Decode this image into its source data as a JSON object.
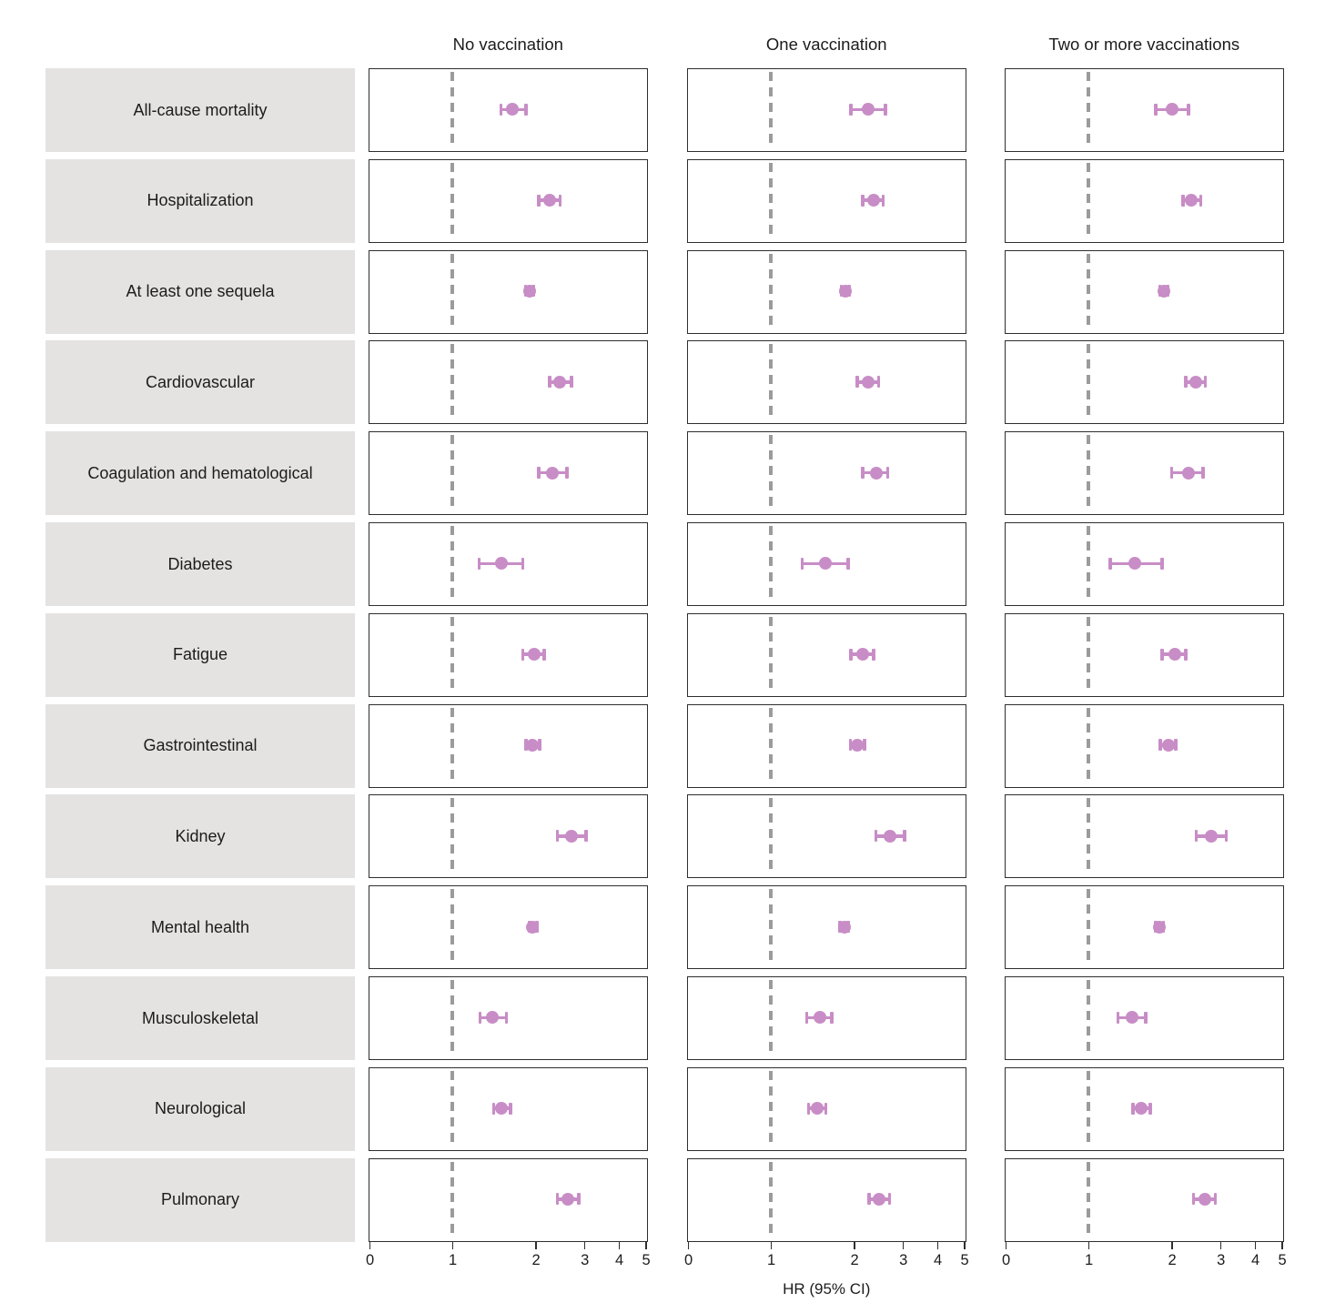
{
  "chart_data": {
    "type": "scatter",
    "subtype": "forest-plot",
    "columns": [
      "No vaccination",
      "One vaccination",
      "Two or more vaccinations"
    ],
    "xlabel": "HR (95% CI)",
    "x_axis": {
      "ticks": [
        0,
        1,
        2,
        3,
        4,
        5
      ],
      "range": [
        0,
        5
      ],
      "scale": "linear from 0 to 1, logarithmic from 1 to 5",
      "reference_line": 1,
      "grid": false
    },
    "legend": {
      "shown": false
    },
    "colors": {
      "marker": "#c88dc6",
      "reference_line": "#9b9b9b",
      "panel_border": "#2e2e2e",
      "row_label_bg": "#e4e3e2",
      "text": "#1c1c1c"
    },
    "rows": [
      {
        "label": "All-cause mortality",
        "estimates": [
          {
            "hr": 1.65,
            "lo": 1.5,
            "hi": 1.85
          },
          {
            "hr": 2.25,
            "lo": 1.95,
            "hi": 2.6
          },
          {
            "hr": 2.0,
            "lo": 1.75,
            "hi": 2.3
          }
        ]
      },
      {
        "label": "Hospitalization",
        "estimates": [
          {
            "hr": 2.25,
            "lo": 2.05,
            "hi": 2.45
          },
          {
            "hr": 2.35,
            "lo": 2.15,
            "hi": 2.55
          },
          {
            "hr": 2.35,
            "lo": 2.2,
            "hi": 2.55
          }
        ]
      },
      {
        "label": "At least one sequela",
        "estimates": [
          {
            "hr": 1.9,
            "lo": 1.84,
            "hi": 1.96
          },
          {
            "hr": 1.86,
            "lo": 1.8,
            "hi": 1.92
          },
          {
            "hr": 1.87,
            "lo": 1.81,
            "hi": 1.93
          }
        ]
      },
      {
        "label": "Cardiovascular",
        "estimates": [
          {
            "hr": 2.45,
            "lo": 2.25,
            "hi": 2.7
          },
          {
            "hr": 2.25,
            "lo": 2.05,
            "hi": 2.45
          },
          {
            "hr": 2.45,
            "lo": 2.25,
            "hi": 2.65
          }
        ]
      },
      {
        "label": "Coagulation and hematological",
        "estimates": [
          {
            "hr": 2.3,
            "lo": 2.05,
            "hi": 2.6
          },
          {
            "hr": 2.4,
            "lo": 2.15,
            "hi": 2.65
          },
          {
            "hr": 2.3,
            "lo": 2.0,
            "hi": 2.6
          }
        ]
      },
      {
        "label": "Diabetes",
        "estimates": [
          {
            "hr": 1.5,
            "lo": 1.25,
            "hi": 1.8
          },
          {
            "hr": 1.57,
            "lo": 1.3,
            "hi": 1.9
          },
          {
            "hr": 1.47,
            "lo": 1.2,
            "hi": 1.85
          }
        ]
      },
      {
        "label": "Fatigue",
        "estimates": [
          {
            "hr": 1.97,
            "lo": 1.8,
            "hi": 2.15
          },
          {
            "hr": 2.15,
            "lo": 1.95,
            "hi": 2.35
          },
          {
            "hr": 2.05,
            "lo": 1.85,
            "hi": 2.25
          }
        ]
      },
      {
        "label": "Gastrointestinal",
        "estimates": [
          {
            "hr": 1.95,
            "lo": 1.85,
            "hi": 2.07
          },
          {
            "hr": 2.05,
            "lo": 1.94,
            "hi": 2.18
          },
          {
            "hr": 1.94,
            "lo": 1.82,
            "hi": 2.07
          }
        ]
      },
      {
        "label": "Kidney",
        "estimates": [
          {
            "hr": 2.7,
            "lo": 2.4,
            "hi": 3.05
          },
          {
            "hr": 2.7,
            "lo": 2.4,
            "hi": 3.05
          },
          {
            "hr": 2.78,
            "lo": 2.45,
            "hi": 3.15
          }
        ]
      },
      {
        "label": "Mental health",
        "estimates": [
          {
            "hr": 1.95,
            "lo": 1.9,
            "hi": 2.02
          },
          {
            "hr": 1.84,
            "lo": 1.78,
            "hi": 1.9
          },
          {
            "hr": 1.81,
            "lo": 1.75,
            "hi": 1.87
          }
        ]
      },
      {
        "label": "Musculoskeletal",
        "estimates": [
          {
            "hr": 1.4,
            "lo": 1.26,
            "hi": 1.57
          },
          {
            "hr": 1.5,
            "lo": 1.35,
            "hi": 1.66
          },
          {
            "hr": 1.44,
            "lo": 1.28,
            "hi": 1.61
          }
        ]
      },
      {
        "label": "Neurological",
        "estimates": [
          {
            "hr": 1.51,
            "lo": 1.41,
            "hi": 1.62
          },
          {
            "hr": 1.47,
            "lo": 1.37,
            "hi": 1.58
          },
          {
            "hr": 1.55,
            "lo": 1.45,
            "hi": 1.67
          }
        ]
      },
      {
        "label": "Pulmonary",
        "estimates": [
          {
            "hr": 2.61,
            "lo": 2.4,
            "hi": 2.86
          },
          {
            "hr": 2.47,
            "lo": 2.27,
            "hi": 2.69
          },
          {
            "hr": 2.63,
            "lo": 2.4,
            "hi": 2.88
          }
        ]
      }
    ]
  }
}
